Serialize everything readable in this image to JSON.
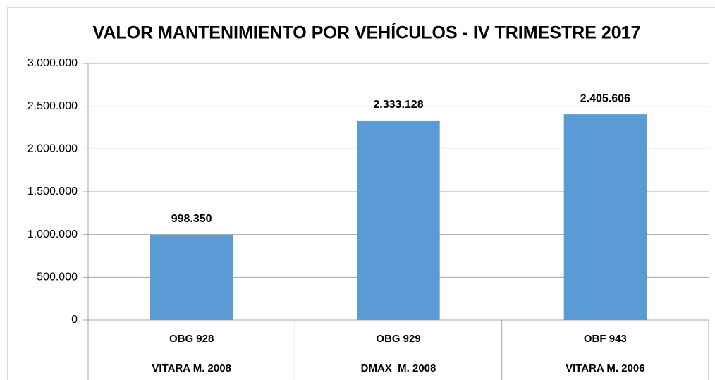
{
  "chart_data": {
    "type": "bar",
    "title": "VALOR MANTENIMIENTO POR VEHÍCULOS - IV TRIMESTRE 2017",
    "categories": [
      [
        "OBG 928",
        "VITARA M. 2008"
      ],
      [
        "OBG 929",
        "DMAX  M. 2008"
      ],
      [
        "OBF 943",
        "VITARA M. 2006"
      ]
    ],
    "values": [
      998350,
      2333128,
      2405606
    ],
    "value_labels": [
      "998.350",
      "2.333.128",
      "2.405.606"
    ],
    "color": "#5b9bd5",
    "ylim": [
      0,
      3000000
    ],
    "yticks": [
      0,
      {
        "value": 500000,
        "label": "500.000"
      },
      {
        "value": 1000000,
        "label": "1.000.000"
      },
      {
        "value": 1500000,
        "label": "1.500.000"
      },
      {
        "value": 2000000,
        "label": "2.000.000"
      },
      {
        "value": 2500000,
        "label": "2.500.000"
      },
      {
        "value": 3000000,
        "label": "3.000.000"
      }
    ],
    "grid": true
  }
}
